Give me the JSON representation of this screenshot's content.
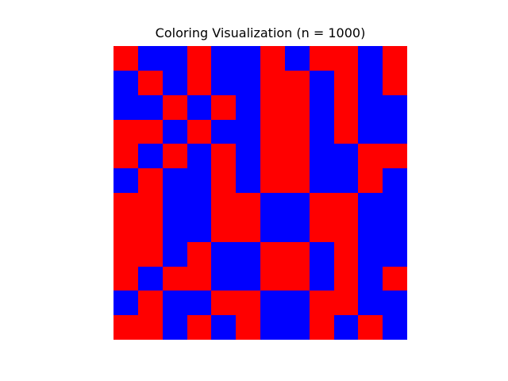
{
  "chart_data": {
    "type": "heatmap",
    "title": "Coloring Visualization (n = 1000)",
    "xlabel": "",
    "ylabel": "",
    "axes_visible": false,
    "grid": false,
    "legend": "none",
    "rows": 12,
    "cols": 12,
    "colors": {
      "0": "#ff0000",
      "1": "#0000ff"
    },
    "matrix": [
      [
        0,
        1,
        1,
        0,
        1,
        1,
        0,
        1,
        0,
        0,
        1,
        0
      ],
      [
        1,
        0,
        1,
        0,
        1,
        1,
        0,
        0,
        1,
        0,
        1,
        0
      ],
      [
        1,
        1,
        0,
        1,
        0,
        1,
        0,
        0,
        1,
        0,
        1,
        1
      ],
      [
        0,
        0,
        1,
        0,
        1,
        1,
        0,
        0,
        1,
        0,
        1,
        1
      ],
      [
        0,
        1,
        0,
        1,
        0,
        1,
        0,
        0,
        1,
        1,
        0,
        0
      ],
      [
        1,
        0,
        1,
        1,
        0,
        1,
        0,
        0,
        1,
        1,
        0,
        1
      ],
      [
        0,
        0,
        1,
        1,
        0,
        0,
        1,
        1,
        0,
        0,
        1,
        1
      ],
      [
        0,
        0,
        1,
        1,
        0,
        0,
        1,
        1,
        0,
        0,
        1,
        1
      ],
      [
        0,
        0,
        1,
        0,
        1,
        1,
        0,
        0,
        1,
        0,
        1,
        1
      ],
      [
        0,
        1,
        0,
        0,
        1,
        1,
        0,
        0,
        1,
        0,
        1,
        0
      ],
      [
        1,
        0,
        1,
        1,
        0,
        0,
        1,
        1,
        0,
        0,
        1,
        1
      ],
      [
        0,
        0,
        1,
        0,
        1,
        0,
        1,
        1,
        0,
        1,
        0,
        1
      ]
    ]
  }
}
